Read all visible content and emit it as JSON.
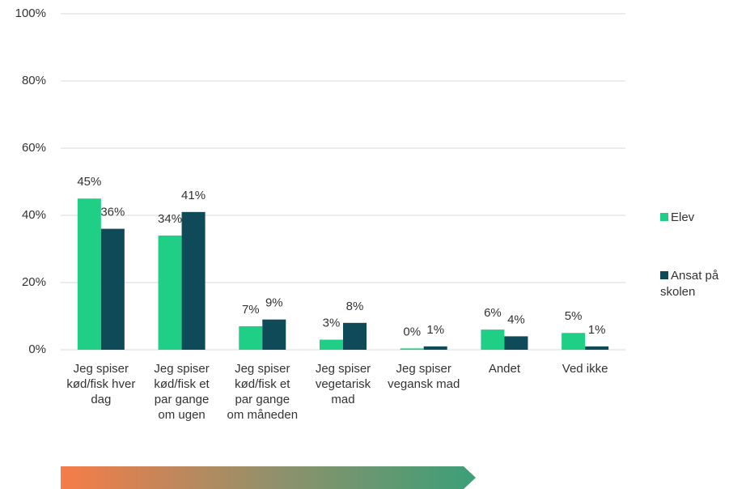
{
  "chart_data": {
    "type": "bar",
    "categories": [
      "Jeg spiser kød/fisk hver dag",
      "Jeg spiser kød/fisk et par gange om ugen",
      "Jeg spiser kød/fisk et par gange om måneden",
      "Jeg spiser vegetarisk mad",
      "Jeg spiser vegansk mad",
      "Andet",
      "Ved ikke"
    ],
    "series": [
      {
        "name": "Elev",
        "color": "#1fcf86",
        "values": [
          45,
          34,
          7,
          3,
          0.4,
          6,
          5
        ],
        "value_labels": [
          "45%",
          "34%",
          "7%",
          "3%",
          "0%",
          "6%",
          "5%"
        ]
      },
      {
        "name": "Ansat på skolen",
        "color": "#0e4a58",
        "values": [
          36,
          41,
          9,
          8,
          1,
          4,
          1
        ],
        "value_labels": [
          "36%",
          "41%",
          "9%",
          "8%",
          "1%",
          "4%",
          "1%"
        ]
      }
    ],
    "ylim": [
      0,
      100
    ],
    "yticks": [
      {
        "value": 0,
        "label": "0%"
      },
      {
        "value": 20,
        "label": "20%"
      },
      {
        "value": 40,
        "label": "40%"
      },
      {
        "value": 60,
        "label": "60%"
      },
      {
        "value": 80,
        "label": "80%"
      },
      {
        "value": 100,
        "label": "100%"
      }
    ],
    "grid": true,
    "legend": "right"
  }
}
